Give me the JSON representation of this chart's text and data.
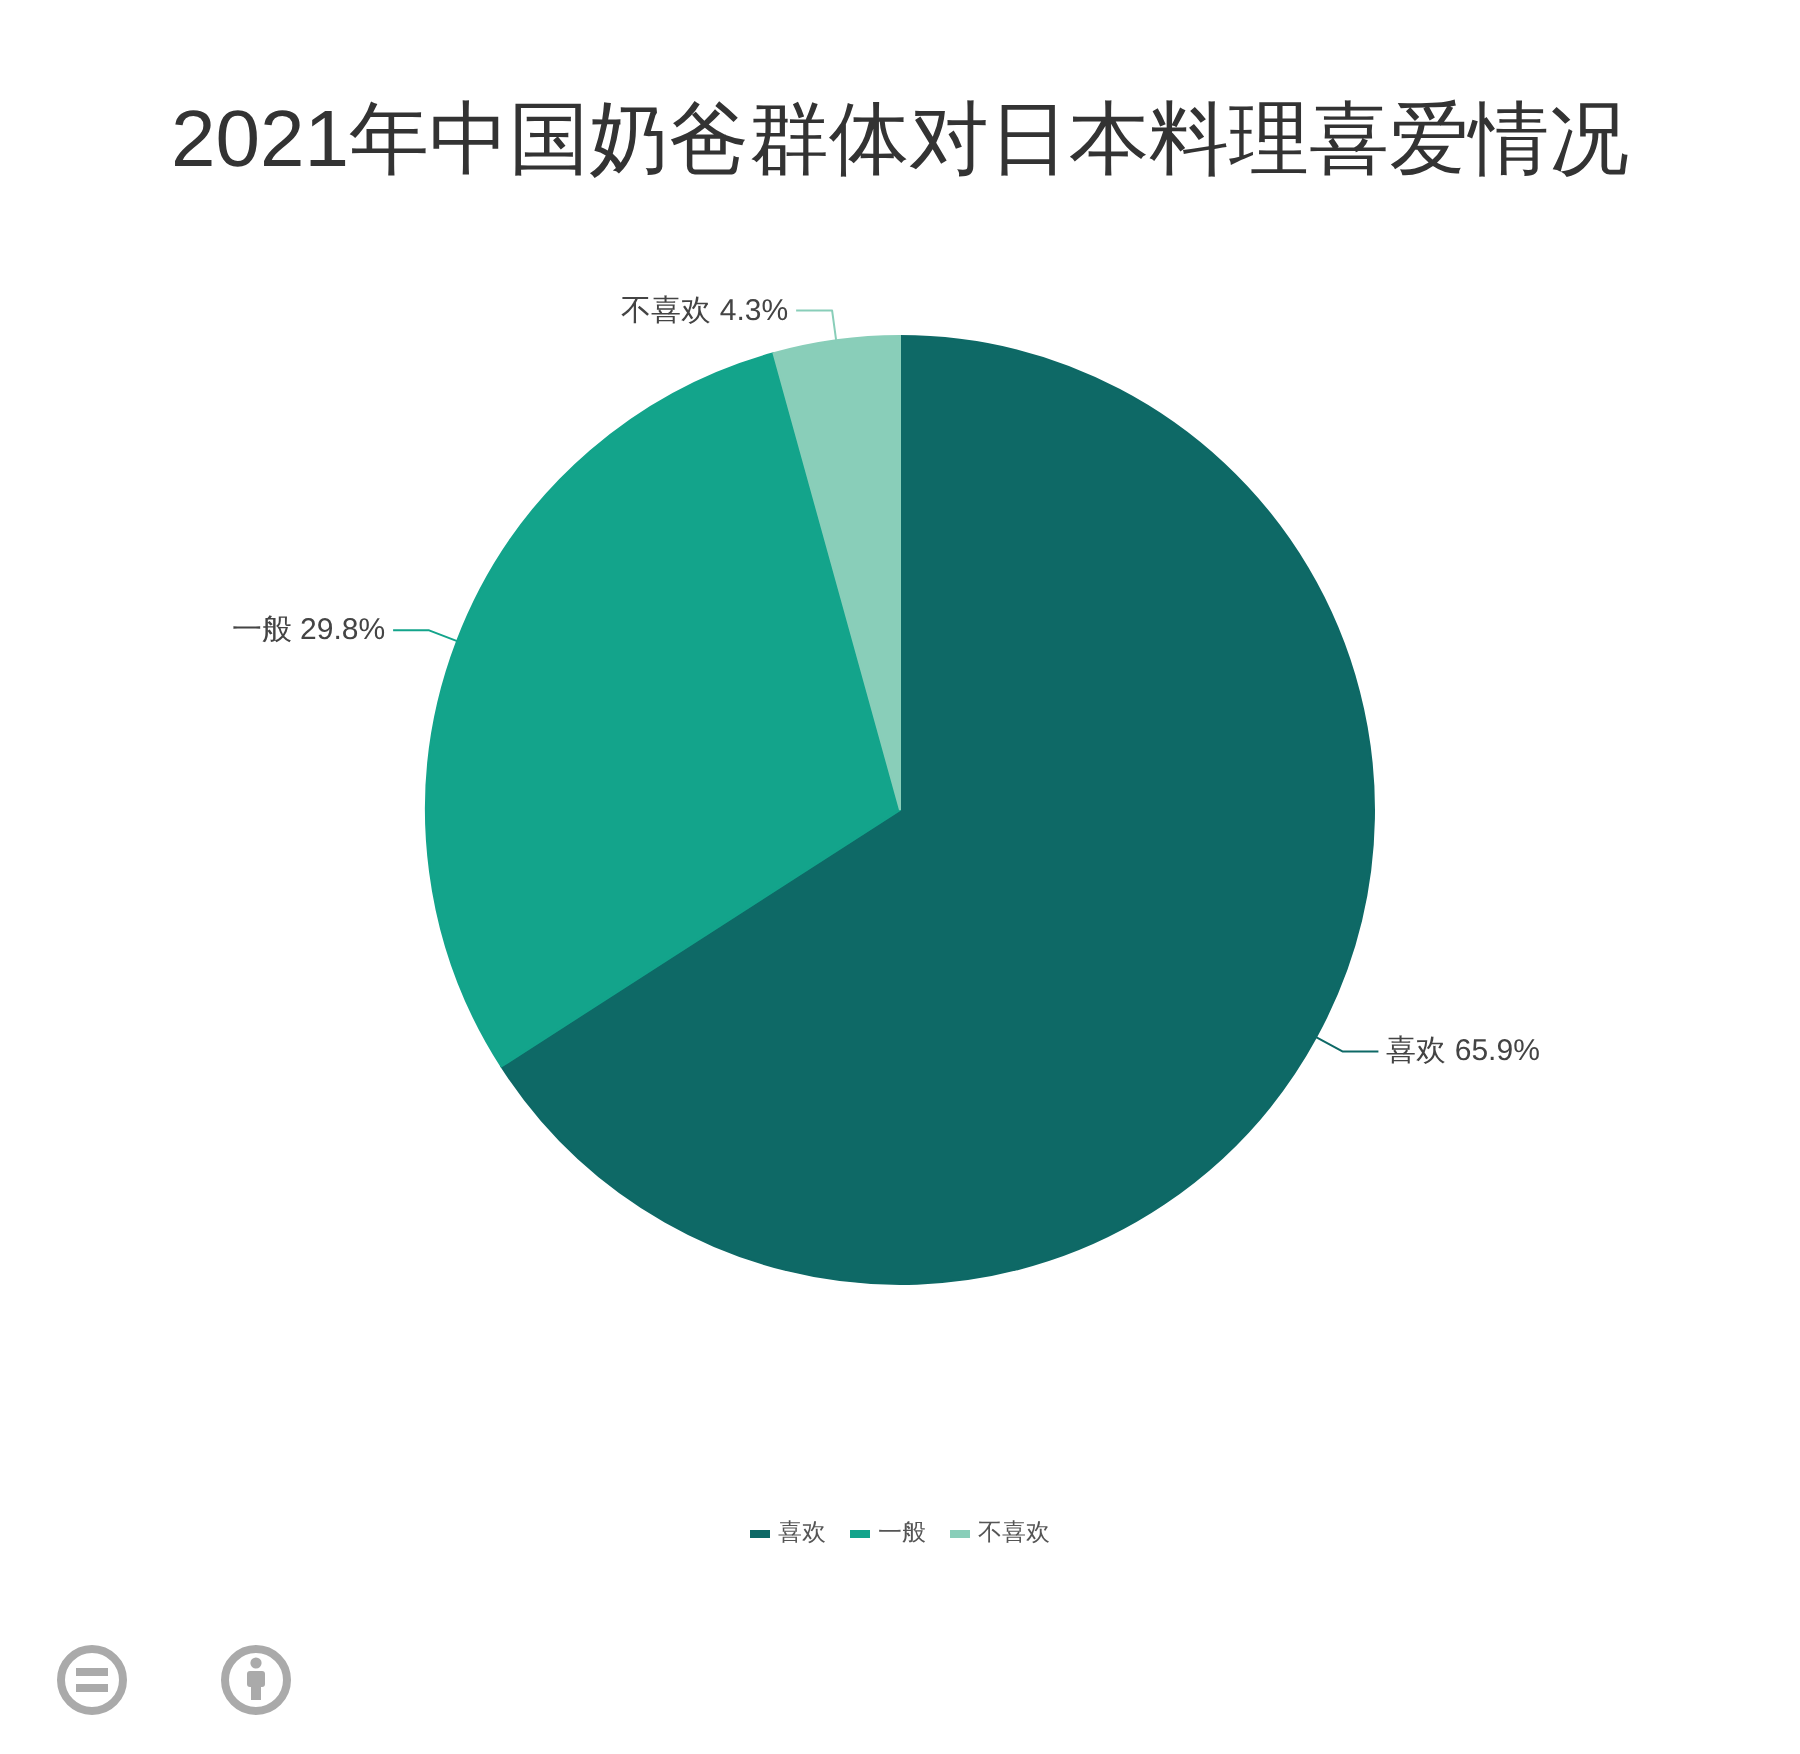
{
  "chart_data": {
    "type": "pie",
    "title": "2021年中国奶爸群体对日本料理喜爱情况",
    "categories": [
      "喜欢",
      "一般",
      "不喜欢"
    ],
    "values": [
      65.9,
      29.8,
      4.3
    ],
    "colors": [
      "#0e6966",
      "#13a48b",
      "#89ceb9"
    ],
    "value_labels": [
      "65.9%",
      "29.8%",
      "4.3%"
    ],
    "legend": "bottom"
  }
}
